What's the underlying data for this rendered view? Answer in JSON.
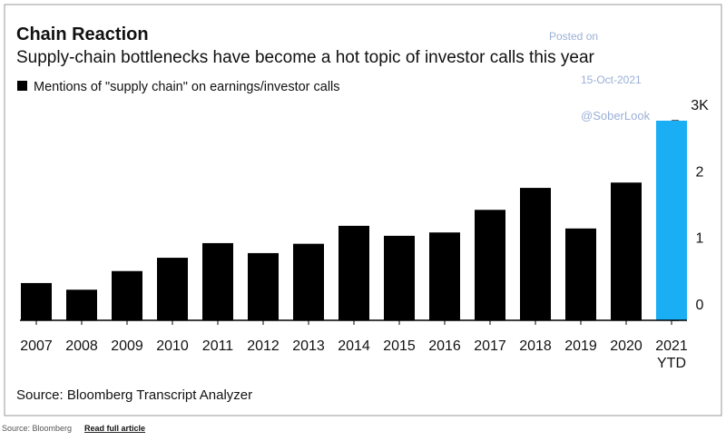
{
  "chart_data": {
    "type": "bar",
    "title": "Chain Reaction",
    "subtitle": "Supply-chain bottlenecks have become a hot topic of investor calls this year",
    "legend": "Mentions of \"supply chain\" on earnings/investor calls",
    "source": "Source: Bloomberg Transcript Analyzer",
    "watermark": [
      "Posted on",
      "15-Oct-2021",
      "@SoberLook"
    ],
    "categories": [
      "2007",
      "2008",
      "2009",
      "2010",
      "2011",
      "2012",
      "2013",
      "2014",
      "2015",
      "2016",
      "2017",
      "2018",
      "2019",
      "2020",
      "2021\nYTD"
    ],
    "values": [
      0.56,
      0.46,
      0.74,
      0.94,
      1.16,
      1.01,
      1.15,
      1.42,
      1.27,
      1.32,
      1.66,
      1.99,
      1.38,
      2.07,
      3.0
    ],
    "colors": [
      "#000000",
      "#000000",
      "#000000",
      "#000000",
      "#000000",
      "#000000",
      "#000000",
      "#000000",
      "#000000",
      "#000000",
      "#000000",
      "#000000",
      "#000000",
      "#000000",
      "#1aaef5"
    ],
    "ylim": [
      0,
      3
    ],
    "yticks": [
      0,
      1,
      2,
      {
        "value": 3,
        "label": "3K"
      }
    ],
    "axis_side": "right"
  },
  "footer": {
    "source": "Source: Bloomberg",
    "link": "Read full article"
  }
}
